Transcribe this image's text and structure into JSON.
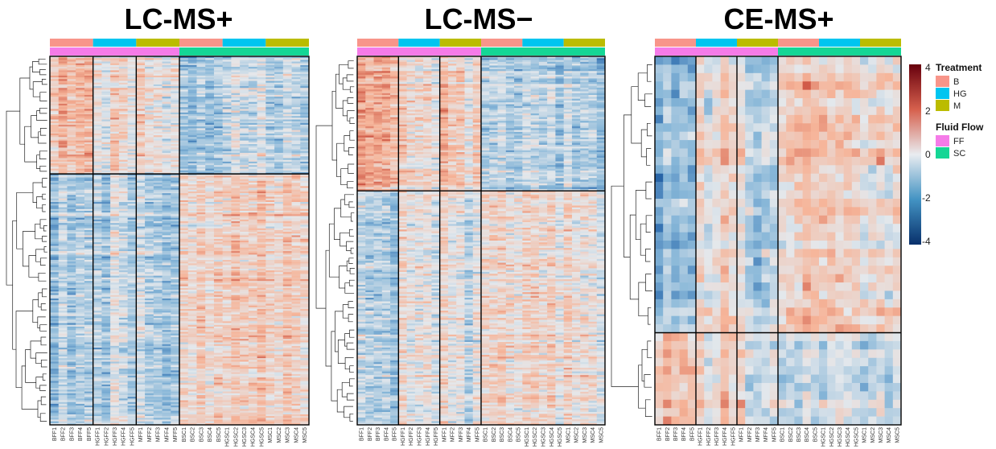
{
  "chart_data": [
    {
      "type": "heatmap",
      "title": "LC-MS+",
      "row_clusters": 2,
      "col_groups": [
        {
          "treatment": "B",
          "fluid_flow": "FF",
          "labels": [
            "BFF1",
            "BFF2",
            "BFF3",
            "BFF4",
            "BFF5"
          ]
        },
        {
          "treatment": "HG",
          "fluid_flow": "FF",
          "labels": [
            "HGFF1",
            "HGFF2",
            "HGFF3",
            "HGFF4",
            "HGFF5"
          ]
        },
        {
          "treatment": "M",
          "fluid_flow": "FF",
          "labels": [
            "MFF1",
            "MFF2",
            "MFF3",
            "MFF4",
            "MFF5"
          ]
        },
        {
          "treatment": "B",
          "fluid_flow": "SC",
          "labels": [
            "BSC1",
            "BSC2",
            "BSC3",
            "BSC4",
            "BSC5"
          ]
        },
        {
          "treatment": "HG",
          "fluid_flow": "SC",
          "labels": [
            "HGSC1",
            "HGSC2",
            "HGSC3",
            "HGSC4",
            "HGSC5"
          ]
        },
        {
          "treatment": "M",
          "fluid_flow": "SC",
          "labels": [
            "MSC1",
            "MSC2",
            "MSC3",
            "MSC4",
            "MSC5"
          ]
        }
      ],
      "cluster_means": [
        [
          1.3,
          0.4,
          0.3,
          -0.7,
          -0.4,
          -0.6
        ],
        [
          -0.6,
          -0.4,
          -0.7,
          0.8,
          0.7,
          0.6
        ]
      ]
    },
    {
      "type": "heatmap",
      "title": "LC-MS−",
      "row_clusters": 2,
      "col_groups": [
        {
          "treatment": "B",
          "fluid_flow": "FF",
          "labels": [
            "BFF1",
            "BFF2",
            "BFF3",
            "BFF4",
            "BFF5"
          ]
        },
        {
          "treatment": "HG",
          "fluid_flow": "FF",
          "labels": [
            "HGFF1",
            "HGFF2",
            "HGFF3",
            "HGFF4",
            "HGFF5"
          ]
        },
        {
          "treatment": "M",
          "fluid_flow": "FF",
          "labels": [
            "MFF1",
            "MFF2",
            "MFF3",
            "MFF4",
            "MFF5"
          ]
        },
        {
          "treatment": "B",
          "fluid_flow": "SC",
          "labels": [
            "BSC1",
            "BSC2",
            "BSC3",
            "BSC4",
            "BSC5"
          ]
        },
        {
          "treatment": "HG",
          "fluid_flow": "SC",
          "labels": [
            "HGSC1",
            "HGSC2",
            "HGSC3",
            "HGSC4",
            "HGSC5"
          ]
        },
        {
          "treatment": "M",
          "fluid_flow": "SC",
          "labels": [
            "MSC1",
            "MSC2",
            "MSC3",
            "MSC4",
            "MSC5"
          ]
        }
      ],
      "cluster_means": [
        [
          1.4,
          0.5,
          0.6,
          -0.6,
          -0.7,
          -0.6
        ],
        [
          -0.7,
          0.2,
          -0.1,
          0.5,
          0.4,
          0.4
        ]
      ]
    },
    {
      "type": "heatmap",
      "title": "CE-MS+",
      "row_clusters": 2,
      "col_groups": [
        {
          "treatment": "B",
          "fluid_flow": "FF",
          "labels": [
            "BFF1",
            "BFF2",
            "BFF3",
            "BFF4",
            "BFF5"
          ]
        },
        {
          "treatment": "HG",
          "fluid_flow": "FF",
          "labels": [
            "HGFF1",
            "HGFF2",
            "HGFF3",
            "HGFF4",
            "HGFF5"
          ]
        },
        {
          "treatment": "M",
          "fluid_flow": "FF",
          "labels": [
            "MFF1",
            "MFF2",
            "MFF3",
            "MFF4",
            "MFF5"
          ]
        },
        {
          "treatment": "B",
          "fluid_flow": "SC",
          "labels": [
            "BSC1",
            "BSC2",
            "BSC3",
            "BSC4",
            "BSC5"
          ]
        },
        {
          "treatment": "HG",
          "fluid_flow": "SC",
          "labels": [
            "HGSC1",
            "HGSC2",
            "HGSC3",
            "HGSC4",
            "HGSC5"
          ]
        },
        {
          "treatment": "M",
          "fluid_flow": "SC",
          "labels": [
            "MSC1",
            "MSC2",
            "MSC3",
            "MSC4",
            "MSC5"
          ]
        }
      ],
      "cluster_means": [
        [
          -1.0,
          0.3,
          -0.4,
          0.8,
          0.7,
          0.6
        ],
        [
          1.0,
          0.3,
          0.0,
          -0.5,
          -0.4,
          -0.4
        ]
      ]
    }
  ],
  "legend": {
    "scale": {
      "max": 4,
      "min": -4,
      "ticks": [
        "4",
        "2",
        "0",
        "-2",
        "-4"
      ]
    },
    "treatment": {
      "title": "Treatment",
      "items": [
        {
          "label": "B",
          "color": "#F8958A"
        },
        {
          "label": "HG",
          "color": "#00C5F0"
        },
        {
          "label": "M",
          "color": "#BBBC00"
        }
      ]
    },
    "fluid_flow": {
      "title": "Fluid Flow",
      "items": [
        {
          "label": "FF",
          "color": "#F57BE8"
        },
        {
          "label": "SC",
          "color": "#15D695"
        }
      ]
    }
  },
  "colors": {
    "low": "#08306B",
    "mid": "#DCE6EE",
    "high": "#67000D"
  }
}
